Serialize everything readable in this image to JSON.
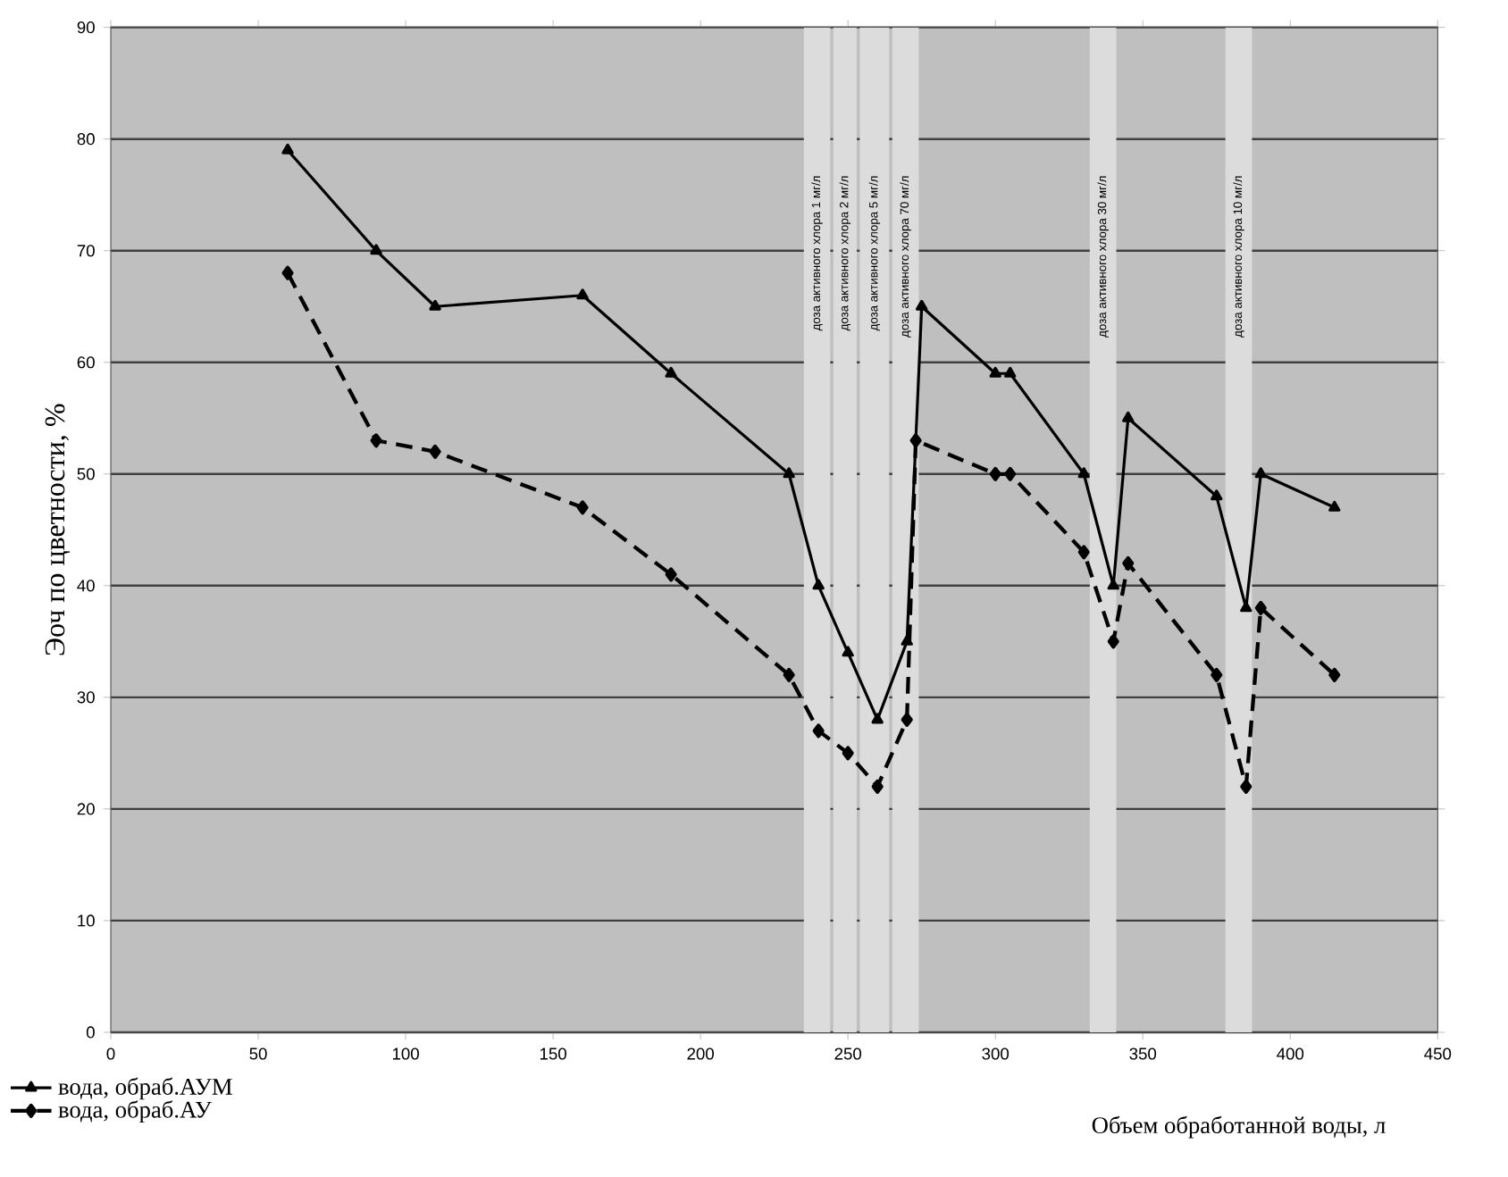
{
  "chart_data": {
    "type": "line",
    "xlabel": "Объем обработанной воды, л",
    "ylabel": "Эоч по цветности, %",
    "xlim": [
      0,
      450
    ],
    "xticks": [
      0,
      50,
      100,
      150,
      200,
      250,
      300,
      350,
      400,
      450
    ],
    "ylim": [
      0,
      90
    ],
    "yticks": [
      0,
      10,
      20,
      30,
      40,
      50,
      60,
      70,
      80,
      90
    ],
    "grid": "y",
    "legend": "bottom left",
    "series": [
      {
        "name": "вода, обраб.АУМ",
        "color": "#000000",
        "marker": "triangle",
        "line_style": "solid",
        "x": [
          60,
          90,
          110,
          160,
          190,
          230,
          240,
          250,
          260,
          270,
          275,
          300,
          305,
          330,
          340,
          345,
          375,
          385,
          390,
          415
        ],
        "values": [
          79,
          70,
          65,
          66,
          59,
          50,
          40,
          34,
          28,
          35,
          65,
          59,
          59,
          50,
          40,
          55,
          48,
          38,
          50,
          47
        ]
      },
      {
        "name": "вода, обраб.АУ",
        "color": "#000000",
        "marker": "diamond",
        "line_style": "dashed",
        "x": [
          60,
          90,
          110,
          160,
          190,
          230,
          240,
          250,
          260,
          270,
          273,
          300,
          305,
          330,
          340,
          345,
          375,
          385,
          390,
          415
        ],
        "values": [
          68,
          53,
          52,
          47,
          41,
          32,
          27,
          25,
          22,
          28,
          53,
          50,
          50,
          43,
          35,
          42,
          32,
          22,
          38,
          32
        ]
      }
    ],
    "bands": [
      {
        "axis": "x",
        "from": 235,
        "to": 244,
        "label": "доза активного хлора 1 мг/л",
        "color": "#dcdcdc"
      },
      {
        "axis": "x",
        "from": 245,
        "to": 253,
        "label": "доза активного хлора 2 мг/л",
        "color": "#dcdcdc"
      },
      {
        "axis": "x",
        "from": 254,
        "to": 264,
        "label": "доза активного хлора 5 мг/л",
        "color": "#dcdcdc"
      },
      {
        "axis": "x",
        "from": 265,
        "to": 274,
        "label": "доза активного хлора 70 мг/л",
        "color": "#dcdcdc"
      },
      {
        "axis": "x",
        "from": 332,
        "to": 341,
        "label": "доза активного хлора 30 мг/л",
        "color": "#dcdcdc"
      },
      {
        "axis": "x",
        "from": 378,
        "to": 387,
        "label": "доза активного хлора 10 мг/л",
        "color": "#dcdcdc"
      }
    ]
  }
}
